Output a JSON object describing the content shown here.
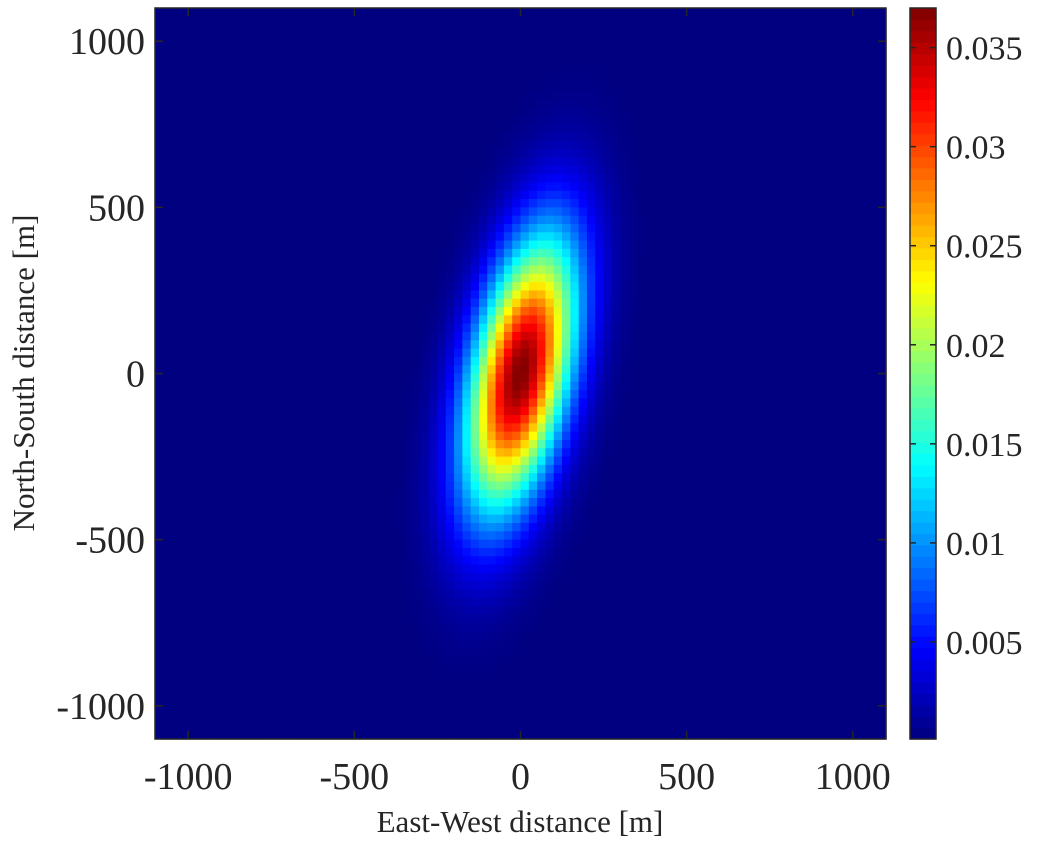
{
  "chart_data": {
    "type": "heatmap",
    "xlabel": "East-West distance [m]",
    "ylabel": "North-South distance [m]",
    "xlim": [
      -1100,
      1100
    ],
    "ylim": [
      -1100,
      1100
    ],
    "x_ticks": [
      -1000,
      -500,
      0,
      500,
      1000
    ],
    "y_ticks": [
      -1000,
      -500,
      0,
      500,
      1000
    ],
    "x_tick_labels": [
      "-1000",
      "-500",
      "0",
      "500",
      "1000"
    ],
    "y_tick_labels": [
      "-1000",
      "-500",
      "0",
      "500",
      "1000"
    ],
    "colormap": "jet",
    "color_range": [
      0.0001,
      0.037
    ],
    "colorbar_ticks": [
      0.005,
      0.01,
      0.015,
      0.02,
      0.025,
      0.03,
      0.035
    ],
    "colorbar_tick_labels": [
      "0.005",
      "0.01",
      "0.015",
      "0.02",
      "0.025",
      "0.03",
      "0.035"
    ],
    "distribution": {
      "shape": "rotated bivariate gaussian",
      "peak_value": 0.037,
      "center": [
        0,
        0
      ],
      "major_axis_sigma": 290,
      "minor_axis_sigma": 100,
      "major_axis_tilt_from_north_deg": 12
    },
    "grid": false
  }
}
